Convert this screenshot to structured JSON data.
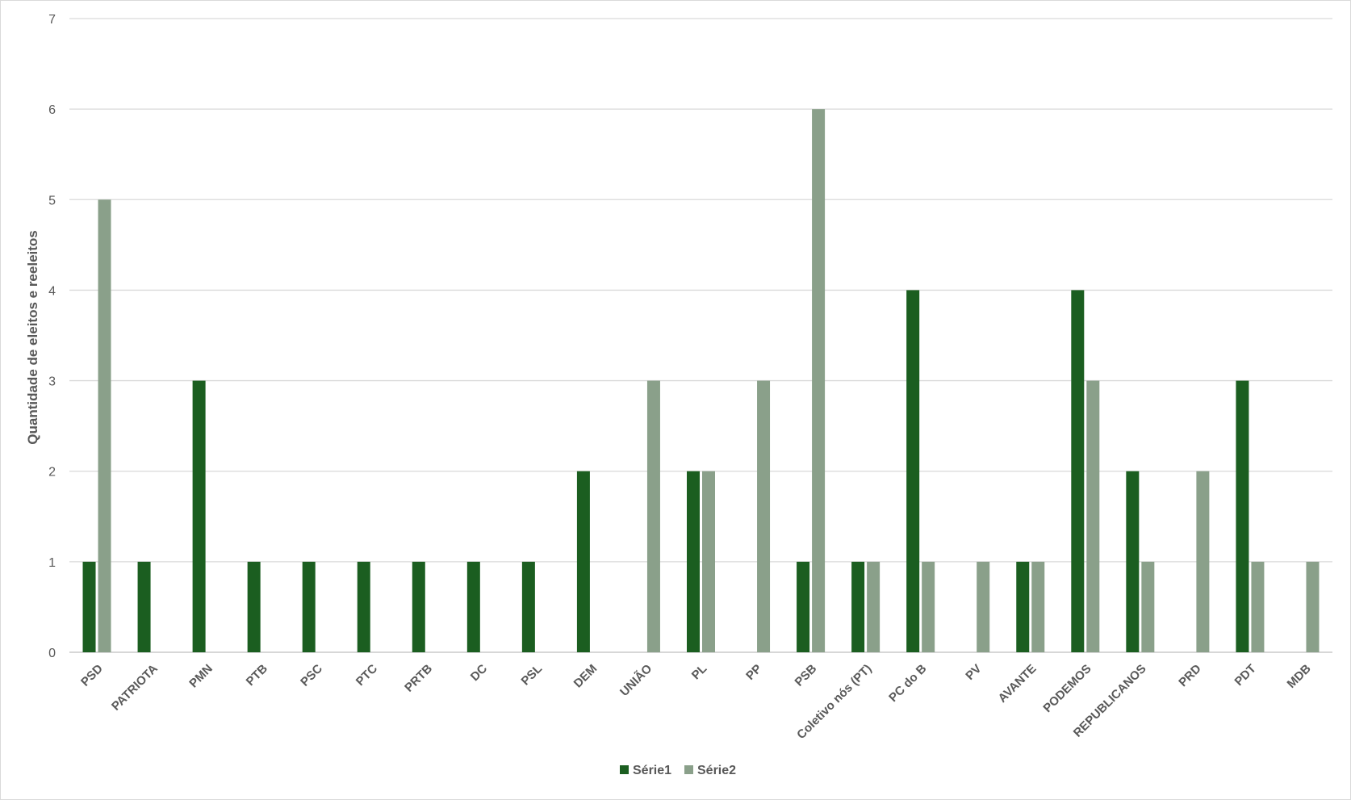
{
  "chart_data": {
    "type": "bar",
    "ylabel": "Quantidade de eleitos e reeleitos",
    "xlabel": "",
    "ylim": [
      0,
      7
    ],
    "yticks": [
      0,
      1,
      2,
      3,
      4,
      5,
      6,
      7
    ],
    "grid": true,
    "legend_position": "bottom",
    "categories": [
      "PSD",
      "PATRIOTA",
      "PMN",
      "PTB",
      "PSC",
      "PTC",
      "PRTB",
      "DC",
      "PSL",
      "DEM",
      "UNIÃO",
      "PL",
      "PP",
      "PSB",
      "Coletivo nós (PT)",
      "PC do B",
      "PV",
      "AVANTE",
      "PODEMOS",
      "REPUBLICANOS",
      "PRD",
      "PDT",
      "MDB"
    ],
    "series": [
      {
        "name": "Série1",
        "color": "#1b5e20",
        "values": [
          1,
          1,
          3,
          1,
          1,
          1,
          1,
          1,
          1,
          2,
          null,
          2,
          null,
          1,
          1,
          4,
          null,
          1,
          4,
          2,
          null,
          3,
          null
        ]
      },
      {
        "name": "Série2",
        "color": "#8aa08a",
        "values": [
          5,
          null,
          null,
          null,
          null,
          null,
          null,
          null,
          null,
          null,
          3,
          2,
          3,
          6,
          1,
          1,
          1,
          1,
          3,
          1,
          2,
          1,
          1
        ]
      }
    ]
  }
}
